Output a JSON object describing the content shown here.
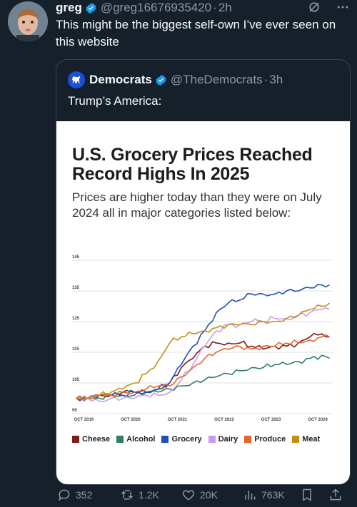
{
  "tweet": {
    "author_name": "greg",
    "handle": "@greg16676935420",
    "time": "2h",
    "text": "This might be the biggest self-own I’ve ever seen on this website"
  },
  "quote": {
    "author_name": "Democrats",
    "handle": "@TheDemocrats",
    "time": "3h",
    "text": "Trump’s America:"
  },
  "chart_data": {
    "type": "line",
    "title": "U.S. Grocery Prices Reached Record Highs In 2025",
    "subtitle": "Prices are higher today than they were on July 2024 all in major categories listed below:",
    "x_ticks": [
      "OCT 2019",
      "OCT 2020",
      "OCT 2021",
      "OCT 2022",
      "OCT 2023",
      "OCT 2024"
    ],
    "y_ticks": [
      95,
      105,
      115,
      125,
      135,
      145
    ],
    "ylim": [
      95,
      145
    ],
    "xlim": [
      "2019-09",
      "2025-04"
    ],
    "x": [
      "2019-10",
      "2020-01",
      "2020-04",
      "2020-07",
      "2020-10",
      "2021-01",
      "2021-04",
      "2021-07",
      "2021-10",
      "2022-01",
      "2022-04",
      "2022-07",
      "2022-10",
      "2023-01",
      "2023-04",
      "2023-07",
      "2023-10",
      "2024-01",
      "2024-04",
      "2024-07",
      "2024-10",
      "2025-01",
      "2025-03"
    ],
    "series": [
      {
        "name": "Cheese",
        "color": "#7b1d18",
        "values": [
          100,
          100,
          101,
          101,
          102,
          102,
          102,
          103,
          105,
          110,
          113,
          117,
          118,
          118,
          118,
          117,
          116,
          117,
          117,
          118,
          120,
          121,
          120
        ]
      },
      {
        "name": "Alcohol",
        "color": "#2f7f5f",
        "values": [
          100,
          100,
          100,
          101,
          101,
          101,
          102,
          102,
          103,
          104,
          105,
          106,
          107,
          108,
          109,
          110,
          110,
          111,
          111,
          112,
          113,
          114,
          113
        ]
      },
      {
        "name": "Grocery",
        "color": "#1f4fb8",
        "values": [
          100,
          100,
          101,
          101,
          101,
          102,
          102,
          103,
          105,
          111,
          117,
          122,
          128,
          131,
          132,
          134,
          134,
          134,
          135,
          135,
          136,
          137,
          137
        ]
      },
      {
        "name": "Dairy",
        "color": "#c79cf0",
        "values": [
          100,
          100,
          99,
          100,
          100,
          100,
          101,
          101,
          102,
          106,
          111,
          117,
          122,
          124,
          124,
          125,
          125,
          126,
          126,
          127,
          128,
          129,
          129
        ]
      },
      {
        "name": "Produce",
        "color": "#e5642e",
        "values": [
          100,
          100,
          101,
          101,
          102,
          102,
          103,
          104,
          104,
          107,
          110,
          113,
          115,
          116,
          117,
          116,
          117,
          117,
          118,
          118,
          119,
          120,
          120
        ]
      },
      {
        "name": "Meat",
        "color": "#c58e12",
        "values": [
          100,
          100,
          101,
          102,
          103,
          105,
          108,
          112,
          118,
          120,
          121,
          122,
          123,
          124,
          124,
          124,
          125,
          125,
          126,
          127,
          129,
          130,
          131
        ]
      }
    ],
    "legend_position": "bottom",
    "grid": true
  },
  "actions": {
    "replies": "352",
    "reposts": "1.2K",
    "likes": "20K",
    "views": "763K"
  }
}
